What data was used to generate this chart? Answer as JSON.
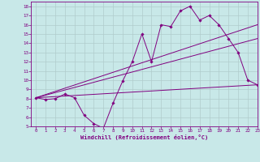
{
  "background_color": "#c8e8e8",
  "line_color": "#800080",
  "xlabel": "Windchill (Refroidissement éolien,°C)",
  "xlim": [
    -0.5,
    23
  ],
  "ylim": [
    5,
    18.5
  ],
  "xticks": [
    0,
    1,
    2,
    3,
    4,
    5,
    6,
    7,
    8,
    9,
    10,
    11,
    12,
    13,
    14,
    15,
    16,
    17,
    18,
    19,
    20,
    21,
    22,
    23
  ],
  "yticks": [
    5,
    6,
    7,
    8,
    9,
    10,
    11,
    12,
    13,
    14,
    15,
    16,
    17,
    18
  ],
  "grid_color": "#b0cccc",
  "curve": {
    "x": [
      0,
      1,
      2,
      3,
      4,
      5,
      6,
      7,
      8,
      9,
      10,
      11,
      12,
      13,
      14,
      15,
      16,
      17,
      18,
      19,
      20,
      21,
      22,
      23
    ],
    "y": [
      8.1,
      7.9,
      8.0,
      8.5,
      8.1,
      6.2,
      5.3,
      4.8,
      7.5,
      9.9,
      12.0,
      15.0,
      12.0,
      16.0,
      15.8,
      17.5,
      18.0,
      16.5,
      17.0,
      16.0,
      14.5,
      13.0,
      10.0,
      9.5
    ]
  },
  "straight_lines": [
    {
      "x": [
        0,
        23
      ],
      "y": [
        8.1,
        16.0
      ]
    },
    {
      "x": [
        0,
        23
      ],
      "y": [
        8.1,
        14.5
      ]
    },
    {
      "x": [
        0,
        23
      ],
      "y": [
        8.1,
        9.5
      ]
    }
  ]
}
